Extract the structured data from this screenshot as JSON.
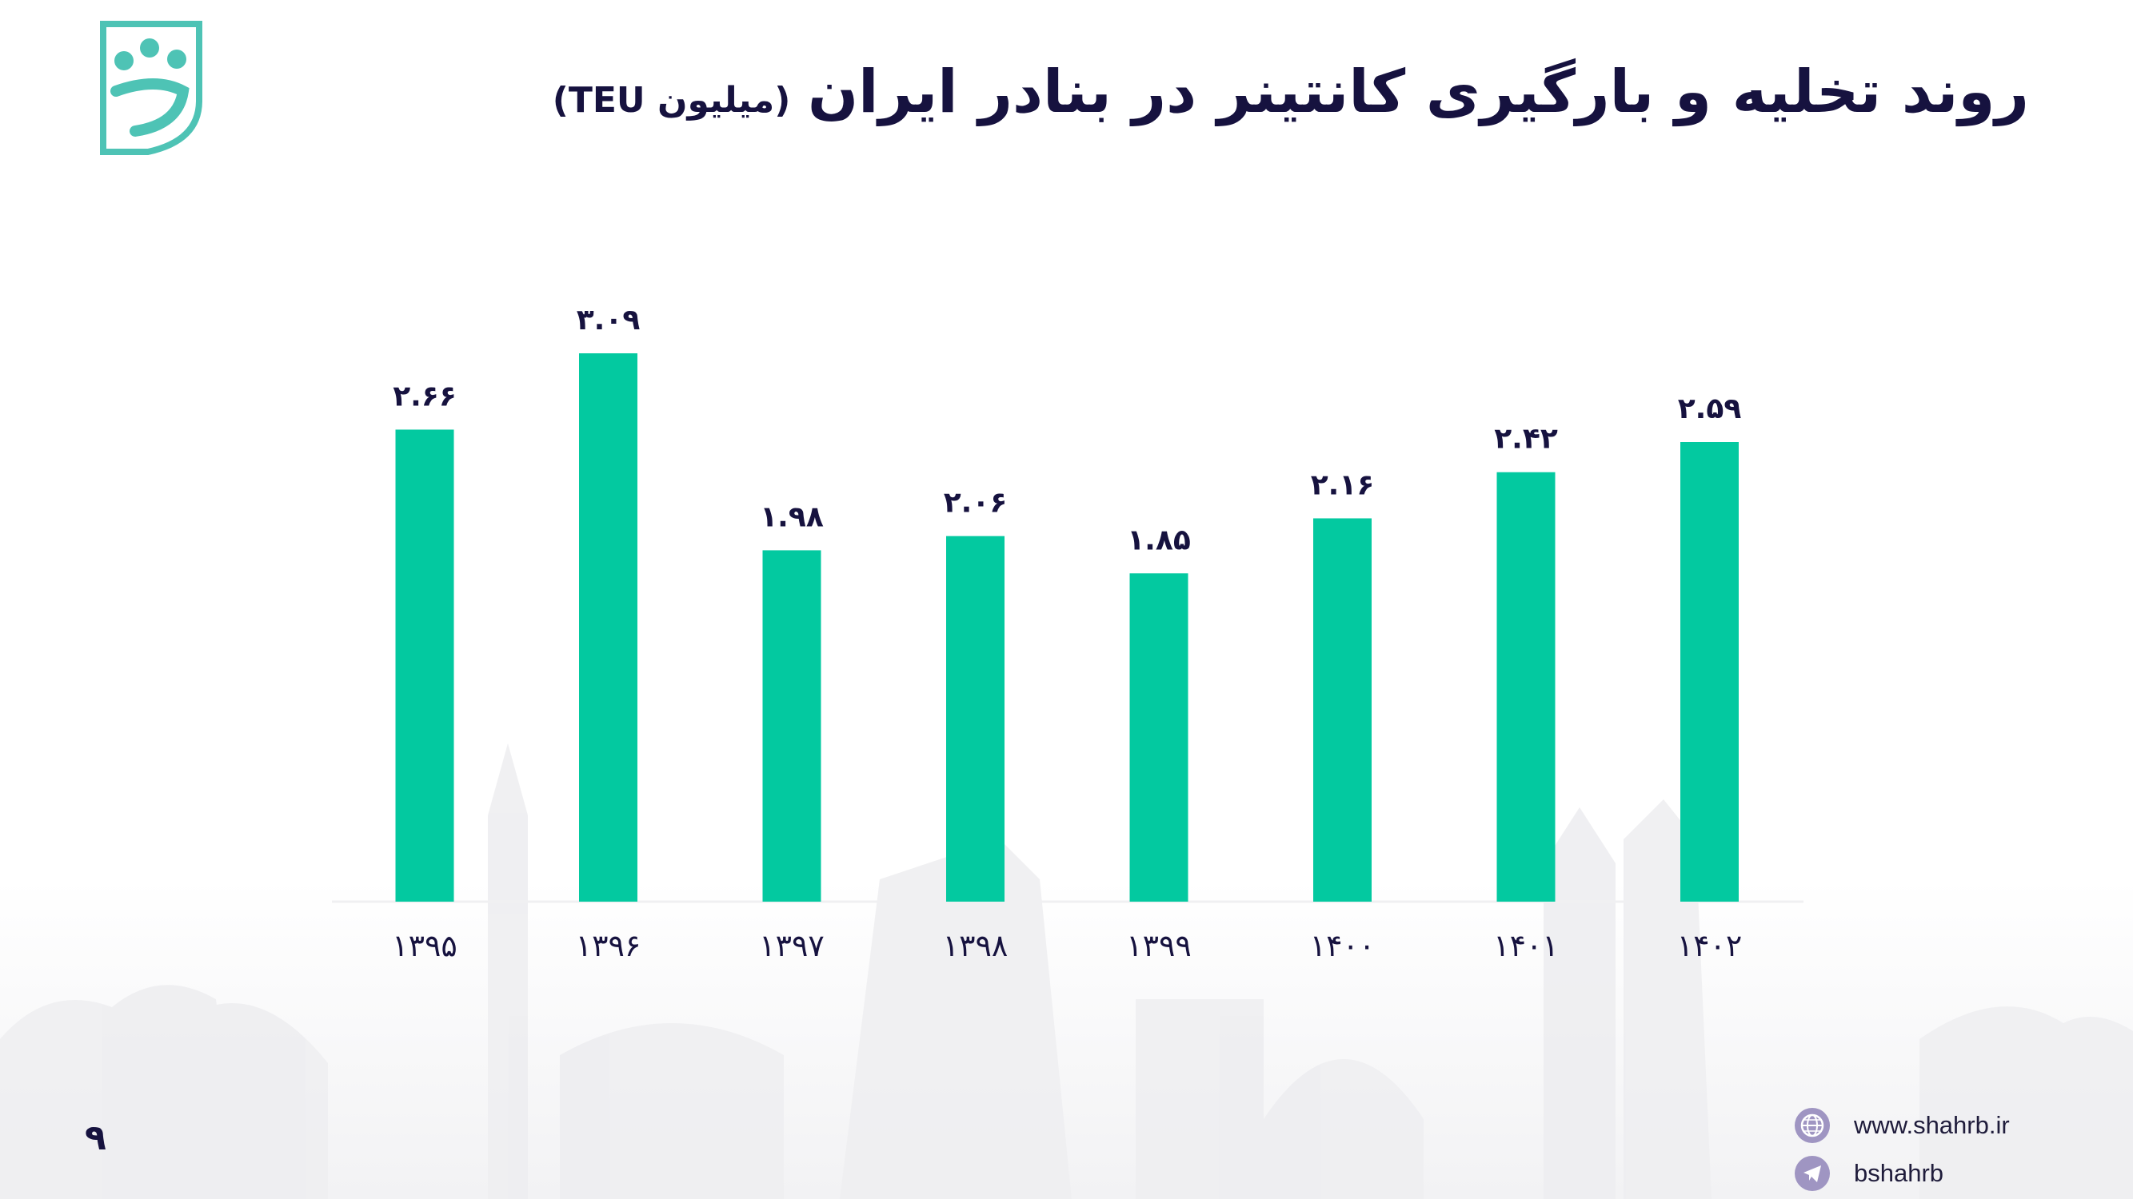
{
  "title": {
    "main": "روند تخلیه و بارگیری کانتینر در بنادر ایران",
    "sub": "(میلیون TEU)"
  },
  "page_number": "۹",
  "contacts": {
    "website": "www.shahrb.ir",
    "telegram": "bshahrb"
  },
  "colors": {
    "bar": "#03c9a0",
    "text": "#16123f",
    "logo": "#4ec3b5",
    "icon": "#9f95c2"
  },
  "chart_data": {
    "type": "bar",
    "categories": [
      "۱۳۹۵",
      "۱۳۹۶",
      "۱۳۹۷",
      "۱۳۹۸",
      "۱۳۹۹",
      "۱۴۰۰",
      "۱۴۰۱",
      "۱۴۰۲"
    ],
    "values": [
      2.66,
      3.09,
      1.98,
      2.06,
      1.85,
      2.16,
      2.42,
      2.59
    ],
    "value_labels": [
      "۲.۶۶",
      "۳.۰۹",
      "۱.۹۸",
      "۲.۰۶",
      "۱.۸۵",
      "۲.۱۶",
      "۲.۴۲",
      "۲.۵۹"
    ],
    "title": "روند تخلیه و بارگیری کانتینر در بنادر ایران",
    "xlabel": "",
    "ylabel": "",
    "ylim": [
      0,
      3.09
    ],
    "grid": false,
    "legend": "none"
  }
}
